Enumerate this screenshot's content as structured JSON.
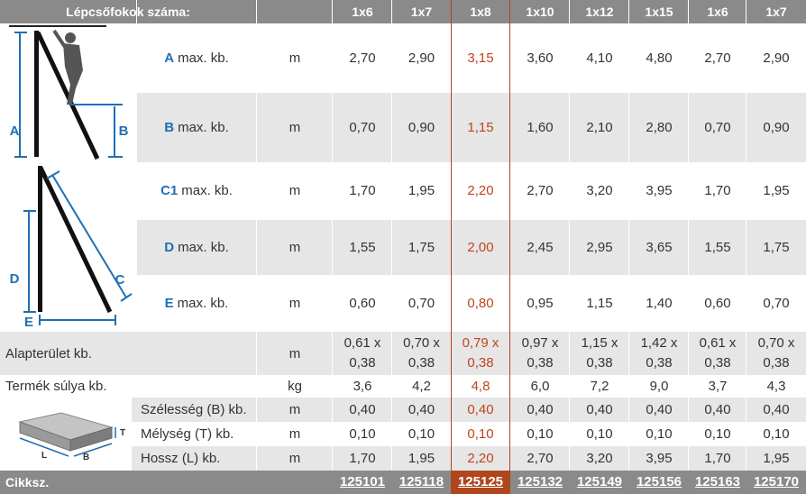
{
  "header": {
    "title": "Lépcsőfokok száma:",
    "columns": [
      "1x6",
      "1x7",
      "1x8",
      "1x10",
      "1x12",
      "1x15",
      "1x6",
      "1x7"
    ]
  },
  "highlight_column_index": 2,
  "rows": [
    {
      "letter": "A",
      "label": "max. kb.",
      "unit": "m",
      "values": [
        "2,70",
        "2,90",
        "3,15",
        "3,60",
        "4,10",
        "4,80",
        "2,70",
        "2,90"
      ]
    },
    {
      "letter": "B",
      "label": "max. kb.",
      "unit": "m",
      "values": [
        "0,70",
        "0,90",
        "1,15",
        "1,60",
        "2,10",
        "2,80",
        "0,70",
        "0,90"
      ]
    },
    {
      "letter": "C1",
      "label": "max. kb.",
      "unit": "m",
      "values": [
        "1,70",
        "1,95",
        "2,20",
        "2,70",
        "3,20",
        "3,95",
        "1,70",
        "1,95"
      ]
    },
    {
      "letter": "D",
      "label": "max. kb.",
      "unit": "m",
      "values": [
        "1,55",
        "1,75",
        "2,00",
        "2,45",
        "2,95",
        "3,65",
        "1,55",
        "1,75"
      ]
    },
    {
      "letter": "E",
      "label": "max. kb.",
      "unit": "m",
      "values": [
        "0,60",
        "0,70",
        "0,80",
        "0,95",
        "1,15",
        "1,40",
        "0,60",
        "0,70"
      ]
    }
  ],
  "alapterulet": {
    "label": "Alapterület kb.",
    "unit": "m",
    "values": [
      [
        "0,61 x",
        "0,38"
      ],
      [
        "0,70 x",
        "0,38"
      ],
      [
        "0,79 x",
        "0,38"
      ],
      [
        "0,97 x",
        "0,38"
      ],
      [
        "1,15 x",
        "0,38"
      ],
      [
        "1,42 x",
        "0,38"
      ],
      [
        "0,61 x",
        "0,38"
      ],
      [
        "0,70 x",
        "0,38"
      ]
    ]
  },
  "suly": {
    "label": "Termék súlya kb.",
    "unit": "kg",
    "values": [
      "3,6",
      "4,2",
      "4,8",
      "6,0",
      "7,2",
      "9,0",
      "3,7",
      "4,3"
    ]
  },
  "package": [
    {
      "label": "Szélesség (B) kb.",
      "unit": "m",
      "values": [
        "0,40",
        "0,40",
        "0,40",
        "0,40",
        "0,40",
        "0,40",
        "0,40",
        "0,40"
      ]
    },
    {
      "label": "Mélység (T) kb.",
      "unit": "m",
      "values": [
        "0,10",
        "0,10",
        "0,10",
        "0,10",
        "0,10",
        "0,10",
        "0,10",
        "0,10"
      ]
    },
    {
      "label": "Hossz (L) kb.",
      "unit": "m",
      "values": [
        "1,70",
        "1,95",
        "2,20",
        "2,70",
        "3,20",
        "3,95",
        "1,70",
        "1,95"
      ]
    }
  ],
  "figure_labels": {
    "a": "A",
    "b": "B",
    "d": "D",
    "c": "C",
    "e": "E",
    "box_t": "T",
    "box_l": "L",
    "box_b": "B"
  },
  "footer": {
    "label": "Cikksz.",
    "codes": [
      "125101",
      "125118",
      "125125",
      "125132",
      "125149",
      "125156",
      "125163",
      "125170"
    ]
  },
  "colors": {
    "header_bg": "#8a8a8a",
    "highlight": "#c0441b",
    "letter_blue": "#1f6fb5",
    "row_gray": "#e6e6e6"
  }
}
